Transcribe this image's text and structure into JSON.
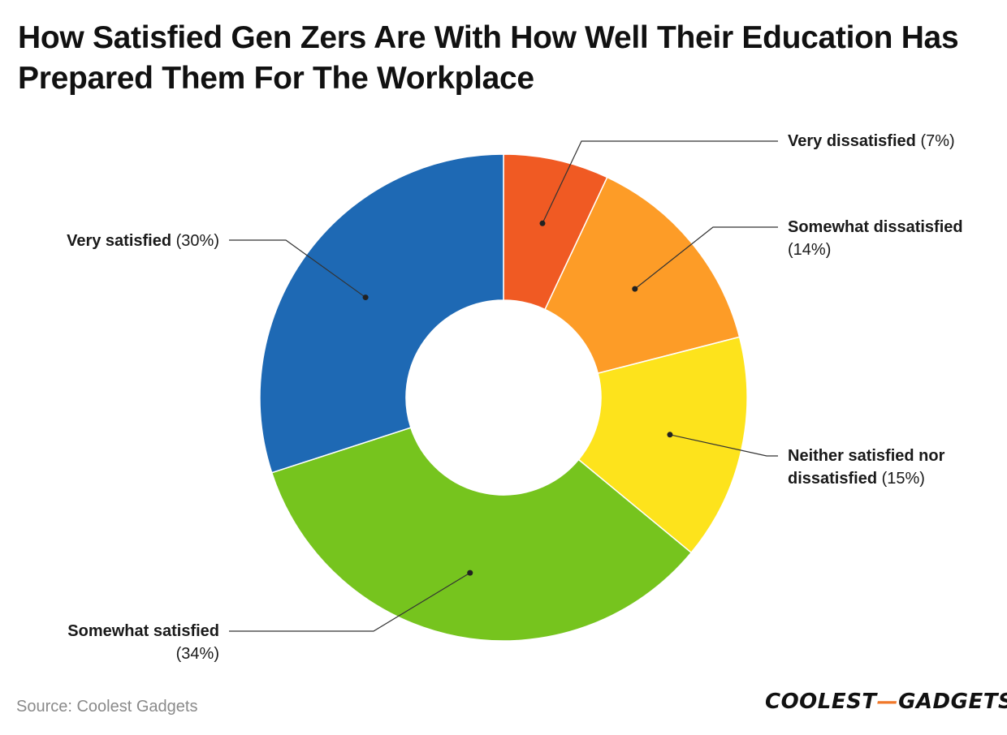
{
  "title": "How Satisfied Gen Zers Are With How Well Their Education Has Prepared Them For The Workplace",
  "source": "Source: Coolest Gadgets",
  "logo": {
    "left": "COOLEST",
    "dash": "—",
    "right": "GADGETS"
  },
  "chart_data": {
    "type": "pie",
    "donut": true,
    "title": "How Satisfied Gen Zers Are With How Well Their Education Has Prepared Them For The Workplace",
    "slices": [
      {
        "name": "Very dissatisfied",
        "value": 7,
        "pct_label": "(7%)",
        "color": "#f05a23"
      },
      {
        "name": "Somewhat dissatisfied",
        "value": 14,
        "pct_label": "(14%)",
        "color": "#fd9c27"
      },
      {
        "name": "Neither satisfied nor dissatisfied",
        "value": 15,
        "pct_label": "(15%)",
        "color": "#fde31c"
      },
      {
        "name": "Somewhat satisfied",
        "value": 34,
        "pct_label": "(34%)",
        "color": "#76c41e"
      },
      {
        "name": "Very satisfied",
        "value": 30,
        "pct_label": "(30%)",
        "color": "#1e69b4"
      }
    ]
  }
}
